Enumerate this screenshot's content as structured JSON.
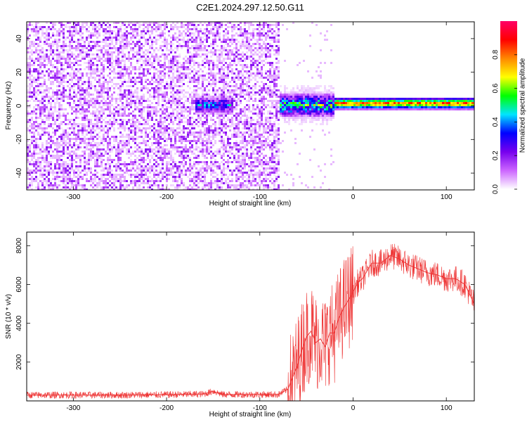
{
  "title": "C2E1.2024.297.12.50.G11",
  "chart_data": [
    {
      "type": "heatmap",
      "xlabel": "Height of straight line (km)",
      "ylabel": "Frequency (Hz)",
      "xlim": [
        -350,
        130
      ],
      "ylim": [
        -50,
        50
      ],
      "x_ticks": [
        -300,
        -200,
        -100,
        0,
        100
      ],
      "y_ticks": [
        -40,
        -20,
        0,
        20,
        40
      ],
      "colorbar": {
        "label": "Normalized spectral amplitude",
        "range": [
          0,
          1
        ],
        "ticks": [
          "0.0",
          "0.2",
          "0.4",
          "0.6",
          "0.8"
        ],
        "tick_values": [
          0.0,
          0.2,
          0.4,
          0.6,
          0.8
        ],
        "colors": [
          "#ffffff",
          "#cc66ff",
          "#7700ee",
          "#0000ff",
          "#00e5ff",
          "#00ff00",
          "#ffff00",
          "#ff8800",
          "#ff0000",
          "#ff0066"
        ]
      },
      "regions": [
        {
          "name": "noise",
          "x_range": [
            -350,
            -80
          ],
          "f_range": [
            -50,
            50
          ],
          "amplitude": 0.12
        },
        {
          "name": "transition-blob",
          "x_range": [
            -170,
            -130
          ],
          "f_center": 1,
          "amplitude": 0.35
        },
        {
          "name": "onset",
          "x_range": [
            -80,
            -20
          ],
          "f_center": 1,
          "amplitude": 0.5
        },
        {
          "name": "carrier",
          "x_range": [
            -20,
            130
          ],
          "f_center": 2,
          "amplitude": 0.85
        }
      ]
    },
    {
      "type": "line",
      "xlabel": "Height of straight line (km)",
      "ylabel": "SNR (10 * v/v)",
      "xlim": [
        -350,
        130
      ],
      "ylim": [
        0,
        8700
      ],
      "x_ticks": [
        -300,
        -200,
        -100,
        0,
        100
      ],
      "y_ticks": [
        2000,
        4000,
        6000,
        8000
      ],
      "color": "#ee3333",
      "x": [
        -350,
        -300,
        -250,
        -200,
        -160,
        -150,
        -140,
        -100,
        -80,
        -70,
        -60,
        -55,
        -50,
        -45,
        -40,
        -35,
        -30,
        -25,
        -20,
        -15,
        -10,
        -5,
        0,
        5,
        10,
        15,
        20,
        30,
        40,
        50,
        60,
        70,
        80,
        90,
        100,
        110,
        120,
        130
      ],
      "y": [
        300,
        300,
        300,
        320,
        350,
        500,
        330,
        330,
        330,
        600,
        1800,
        2600,
        3300,
        3600,
        3000,
        3200,
        2800,
        3500,
        3500,
        4300,
        4800,
        5200,
        5600,
        6100,
        6300,
        6700,
        7100,
        7100,
        7500,
        7300,
        7000,
        6800,
        6600,
        6500,
        6300,
        6300,
        6000,
        5000
      ]
    }
  ]
}
